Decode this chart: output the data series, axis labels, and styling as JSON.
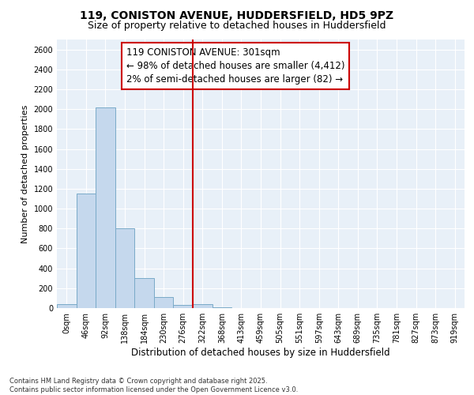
{
  "title": "119, CONISTON AVENUE, HUDDERSFIELD, HD5 9PZ",
  "subtitle": "Size of property relative to detached houses in Huddersfield",
  "xlabel": "Distribution of detached houses by size in Huddersfield",
  "ylabel": "Number of detached properties",
  "footer_line1": "Contains HM Land Registry data © Crown copyright and database right 2025.",
  "footer_line2": "Contains public sector information licensed under the Open Government Licence v3.0.",
  "annotation_line1": "119 CONISTON AVENUE: 301sqm",
  "annotation_line2": "← 98% of detached houses are smaller (4,412)",
  "annotation_line3": "2% of semi-detached houses are larger (82) →",
  "categories": [
    "0sqm",
    "46sqm",
    "92sqm",
    "138sqm",
    "184sqm",
    "230sqm",
    "276sqm",
    "322sqm",
    "368sqm",
    "413sqm",
    "459sqm",
    "505sqm",
    "551sqm",
    "597sqm",
    "643sqm",
    "689sqm",
    "735sqm",
    "781sqm",
    "827sqm",
    "873sqm",
    "919sqm"
  ],
  "values": [
    40,
    1150,
    2020,
    800,
    300,
    110,
    35,
    40,
    5,
    0,
    0,
    0,
    0,
    0,
    0,
    0,
    0,
    0,
    0,
    0,
    0
  ],
  "bar_color": "#c5d8ed",
  "bar_edge_color": "#7aaac8",
  "vline_color": "#cc0000",
  "vline_x": 7.0,
  "annotation_box_color": "#cc0000",
  "ylim": [
    0,
    2700
  ],
  "yticks": [
    0,
    200,
    400,
    600,
    800,
    1000,
    1200,
    1400,
    1600,
    1800,
    2000,
    2200,
    2400,
    2600
  ],
  "background_color": "#e8f0f8",
  "fig_background_color": "#ffffff",
  "title_fontsize": 10,
  "subtitle_fontsize": 9,
  "xlabel_fontsize": 8.5,
  "ylabel_fontsize": 8,
  "tick_fontsize": 7,
  "footer_fontsize": 6,
  "annotation_fontsize": 8.5
}
